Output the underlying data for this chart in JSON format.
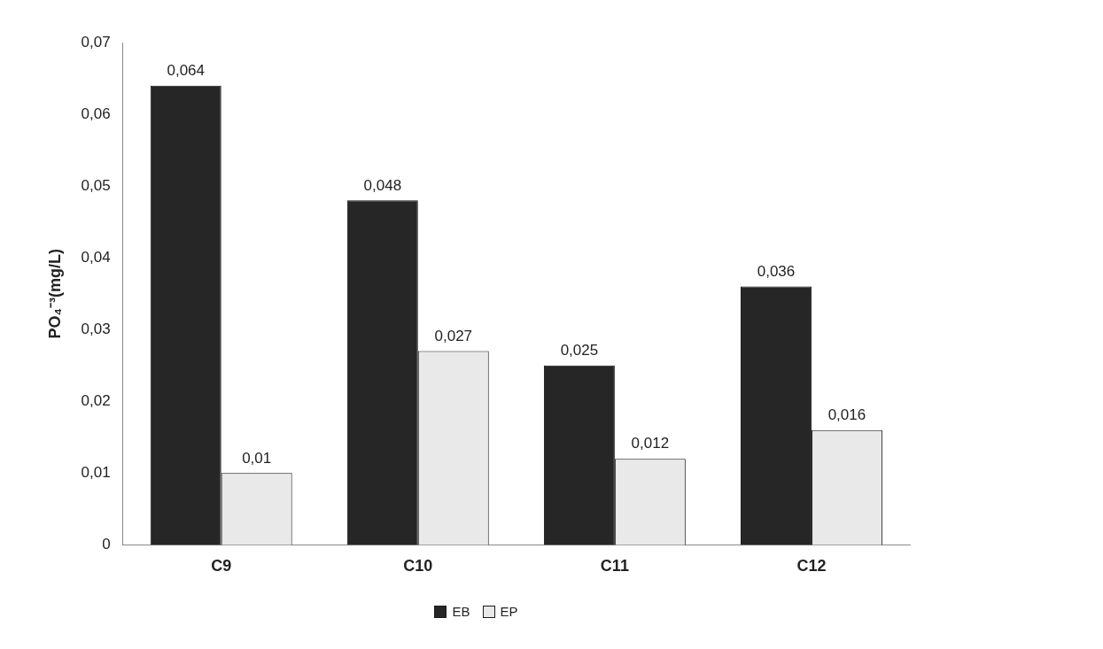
{
  "chart_data": {
    "type": "bar",
    "ylabel": "PO₄⁻³(mg/L)",
    "categories": [
      "C9",
      "C10",
      "C11",
      "C12"
    ],
    "series": [
      {
        "name": "EB",
        "color": "#262626",
        "values": [
          0.064,
          0.048,
          0.025,
          0.036
        ],
        "value_labels": [
          "0,064",
          "0,048",
          "0,025",
          "0,036"
        ]
      },
      {
        "name": "EP",
        "color": "#e9e9e9",
        "values": [
          0.01,
          0.027,
          0.012,
          0.016
        ],
        "value_labels": [
          "0,01",
          "0,027",
          "0,012",
          "0,016"
        ]
      }
    ],
    "ylim": [
      0,
      0.07
    ],
    "yticks": [
      {
        "value": 0,
        "label": "0"
      },
      {
        "value": 0.01,
        "label": "0,01"
      },
      {
        "value": 0.02,
        "label": "0,02"
      },
      {
        "value": 0.03,
        "label": "0,03"
      },
      {
        "value": 0.04,
        "label": "0,04"
      },
      {
        "value": 0.05,
        "label": "0,05"
      },
      {
        "value": 0.06,
        "label": "0,06"
      },
      {
        "value": 0.07,
        "label": "0,07"
      }
    ],
    "grid": false,
    "legend": "bottom"
  }
}
